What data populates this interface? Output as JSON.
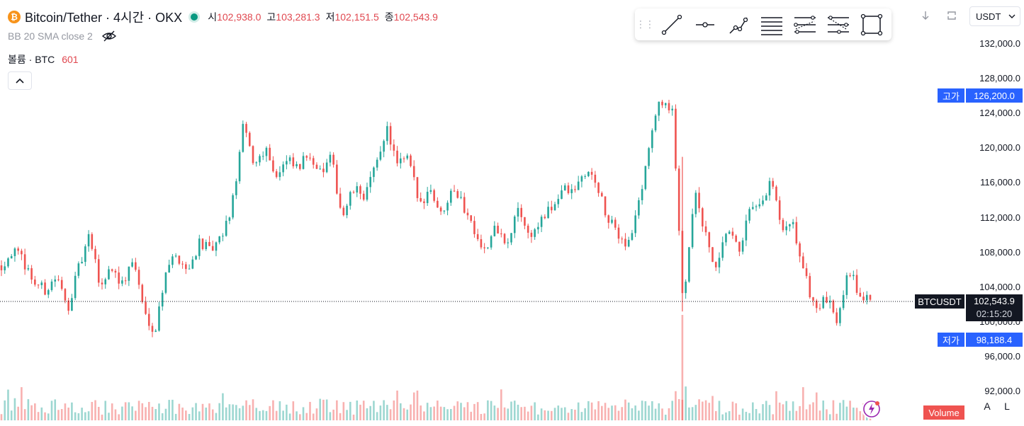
{
  "legend": {
    "coin_icon": "bitcoin-icon",
    "symbol": "Bitcoin/Tether · 4시간 · OKX",
    "open_label": "시",
    "open_value": "102,938.0",
    "high_label": "고",
    "high_value": "103,281.3",
    "low_label": "저",
    "low_value": "102,151.5",
    "close_label": "종",
    "close_value": "102,543.9",
    "indicator": "BB 20 SMA close 2",
    "volume_label": "볼륨 · BTC",
    "volume_value": "601"
  },
  "toolbar": {
    "tools": [
      "trend-line-icon",
      "horizontal-ray-icon",
      "line-path-icon",
      "parallel-channel-icon",
      "regression-trend-icon",
      "fib-channel-icon",
      "rectangle-icon"
    ]
  },
  "price_scale": {
    "currency": "USDT",
    "labels": [
      "132,000.0",
      "128,000.0",
      "124,000.0",
      "120,000.0",
      "116,000.0",
      "112,000.0",
      "108,000.0",
      "104,000.0",
      "100,000.0",
      "96,000.0",
      "92,000.0"
    ],
    "high_tag_label": "고가",
    "high_tag_value": "126,200.0",
    "low_tag_label": "저가",
    "low_tag_value": "98,188.4",
    "symbol_tag": "BTCUSDT",
    "last_price": "102,543.9",
    "countdown": "02:15:20"
  },
  "bottom": {
    "volume_badge": "Volume",
    "auto_label": "A",
    "log_label": "L"
  },
  "colors": {
    "up": "#26a69a",
    "down": "#ef5350",
    "high_low_tag": "#2962ff",
    "last_price_tag": "#131722",
    "volume_badge": "#ef5350"
  },
  "chart_data": {
    "type": "candlestick",
    "ylim": [
      92000,
      132000
    ],
    "last_price": 102543.9,
    "high": 126200.0,
    "low": 98188.4,
    "close_path": [
      106500,
      108200,
      107000,
      104500,
      103600,
      105200,
      101500,
      106000,
      109800,
      104000,
      106500,
      104200,
      107300,
      101000,
      99000,
      106500,
      107600,
      105800,
      109300,
      108000,
      109500,
      113500,
      122500,
      118000,
      120200,
      116800,
      118500,
      117500,
      119600,
      117000,
      118800,
      112000,
      115200,
      114600,
      117600,
      122500,
      118000,
      118800,
      113500,
      115500,
      112200,
      116000,
      113300,
      110800,
      108000,
      111000,
      108500,
      113300,
      109700,
      111500,
      113000,
      115300,
      114800,
      117200,
      116400,
      112000,
      110200,
      108900,
      113800,
      121200,
      125700,
      124000,
      102000,
      115000,
      110000,
      105500,
      110800,
      108000,
      112500,
      113000,
      116300,
      110200,
      111000,
      105500,
      101500,
      102500,
      100300,
      106500,
      103000,
      102543.9
    ]
  }
}
